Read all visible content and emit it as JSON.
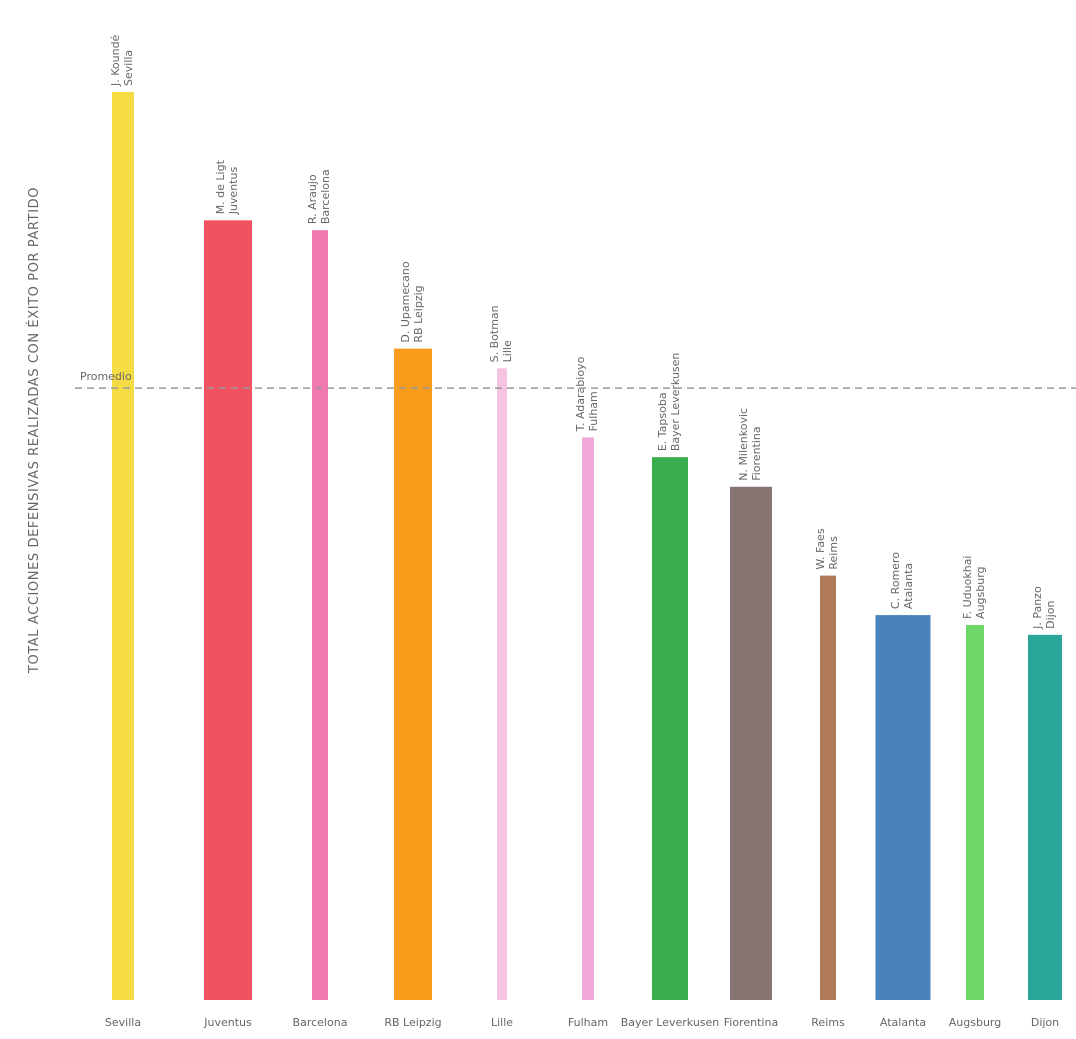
{
  "chart_data": {
    "type": "bar",
    "y_label": "TOTAL ACCIONES DEFENSIVAS REALIZADAS CON ÉXITO POR PARTIDO",
    "categories": [
      "Sevilla",
      "Juventus",
      "Barcelona",
      "RB Leipzig",
      "Lille",
      "Fulham",
      "Bayer Leverkusen",
      "Fiorentina",
      "Reims",
      "Atalanta",
      "Augsburg",
      "Dijon"
    ],
    "players": [
      "J. Koundé",
      "M. de Ligt",
      "R. Araujo",
      "D. Upamecano",
      "S. Botman",
      "T. Adarabioyo",
      "E. Tapsoba",
      "N. Milenkovic",
      "W. Faes",
      "C. Romero",
      "F. Uduokhai",
      "J. Panzo"
    ],
    "values": [
      9.2,
      7.9,
      7.8,
      6.6,
      6.4,
      5.7,
      5.5,
      5.2,
      4.3,
      3.9,
      3.8,
      3.7
    ],
    "colors": [
      "#f5dc45",
      "#f2525f",
      "#f07ab0",
      "#f99c1c",
      "#f7c3e2",
      "#f0a8d8",
      "#3aae4c",
      "#857472",
      "#b07a5a",
      "#4a82bd",
      "#6fd66a",
      "#2aa59a"
    ],
    "average": {
      "label": "Promedio",
      "value": 6.2
    }
  }
}
